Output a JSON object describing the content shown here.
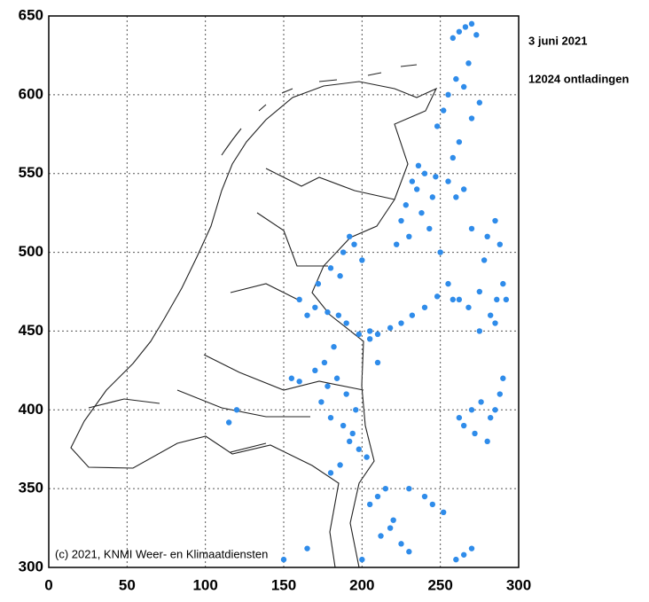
{
  "chart_data": {
    "type": "scatter",
    "date": "3 juni 2021",
    "count_label": "12024 ontladingen",
    "copyright": "(c) 2021, KNMI Weer- en Klimaatdiensten",
    "color": "#2f8cea",
    "xlim": [
      0,
      300
    ],
    "ylim": [
      300,
      650
    ],
    "xticks": [
      0,
      50,
      100,
      150,
      200,
      250,
      300
    ],
    "yticks": [
      300,
      350,
      400,
      450,
      500,
      550,
      600,
      650
    ],
    "grid": true,
    "series": [
      {
        "name": "ontladingen",
        "x": [
          262,
          266,
          270,
          273,
          258,
          268,
          255,
          260,
          265,
          252,
          270,
          275,
          248,
          258,
          262,
          240,
          235,
          228,
          232,
          245,
          238,
          225,
          230,
          250,
          243,
          222,
          236,
          247,
          255,
          260,
          265,
          270,
          258,
          285,
          288,
          280,
          278,
          290,
          286,
          282,
          275,
          268,
          262,
          255,
          248,
          240,
          232,
          225,
          218,
          210,
          205,
          198,
          190,
          185,
          178,
          170,
          165,
          160,
          172,
          180,
          188,
          195,
          200,
          192,
          186,
          182,
          176,
          170,
          178,
          184,
          190,
          196,
          188,
          180,
          174,
          192,
          198,
          203,
          186,
          180,
          194,
          270,
          276,
          282,
          288,
          265,
          272,
          280,
          262,
          285,
          290,
          205,
          210,
          215,
          220,
          212,
          225,
          230,
          200,
          218,
          260,
          265,
          270,
          155,
          160,
          120,
          115,
          150,
          165,
          230,
          240,
          245,
          252,
          285,
          292,
          275,
          210,
          205
        ],
        "y": [
          640,
          643,
          645,
          638,
          636,
          620,
          600,
          610,
          605,
          590,
          585,
          595,
          580,
          560,
          570,
          550,
          540,
          530,
          545,
          535,
          525,
          520,
          510,
          500,
          515,
          505,
          555,
          548,
          545,
          535,
          540,
          515,
          470,
          520,
          505,
          510,
          495,
          480,
          470,
          460,
          475,
          465,
          470,
          480,
          472,
          465,
          460,
          455,
          452,
          448,
          445,
          448,
          455,
          460,
          462,
          465,
          460,
          470,
          480,
          490,
          500,
          505,
          495,
          510,
          485,
          440,
          430,
          425,
          415,
          420,
          410,
          400,
          390,
          395,
          405,
          380,
          375,
          370,
          365,
          360,
          385,
          400,
          405,
          395,
          410,
          390,
          385,
          380,
          395,
          400,
          420,
          340,
          345,
          350,
          330,
          320,
          315,
          310,
          305,
          325,
          305,
          308,
          312,
          420,
          418,
          400,
          392,
          305,
          312,
          350,
          345,
          340,
          335,
          455,
          470,
          450,
          430,
          450
        ],
        "color": "#2f8cea"
      }
    ]
  }
}
